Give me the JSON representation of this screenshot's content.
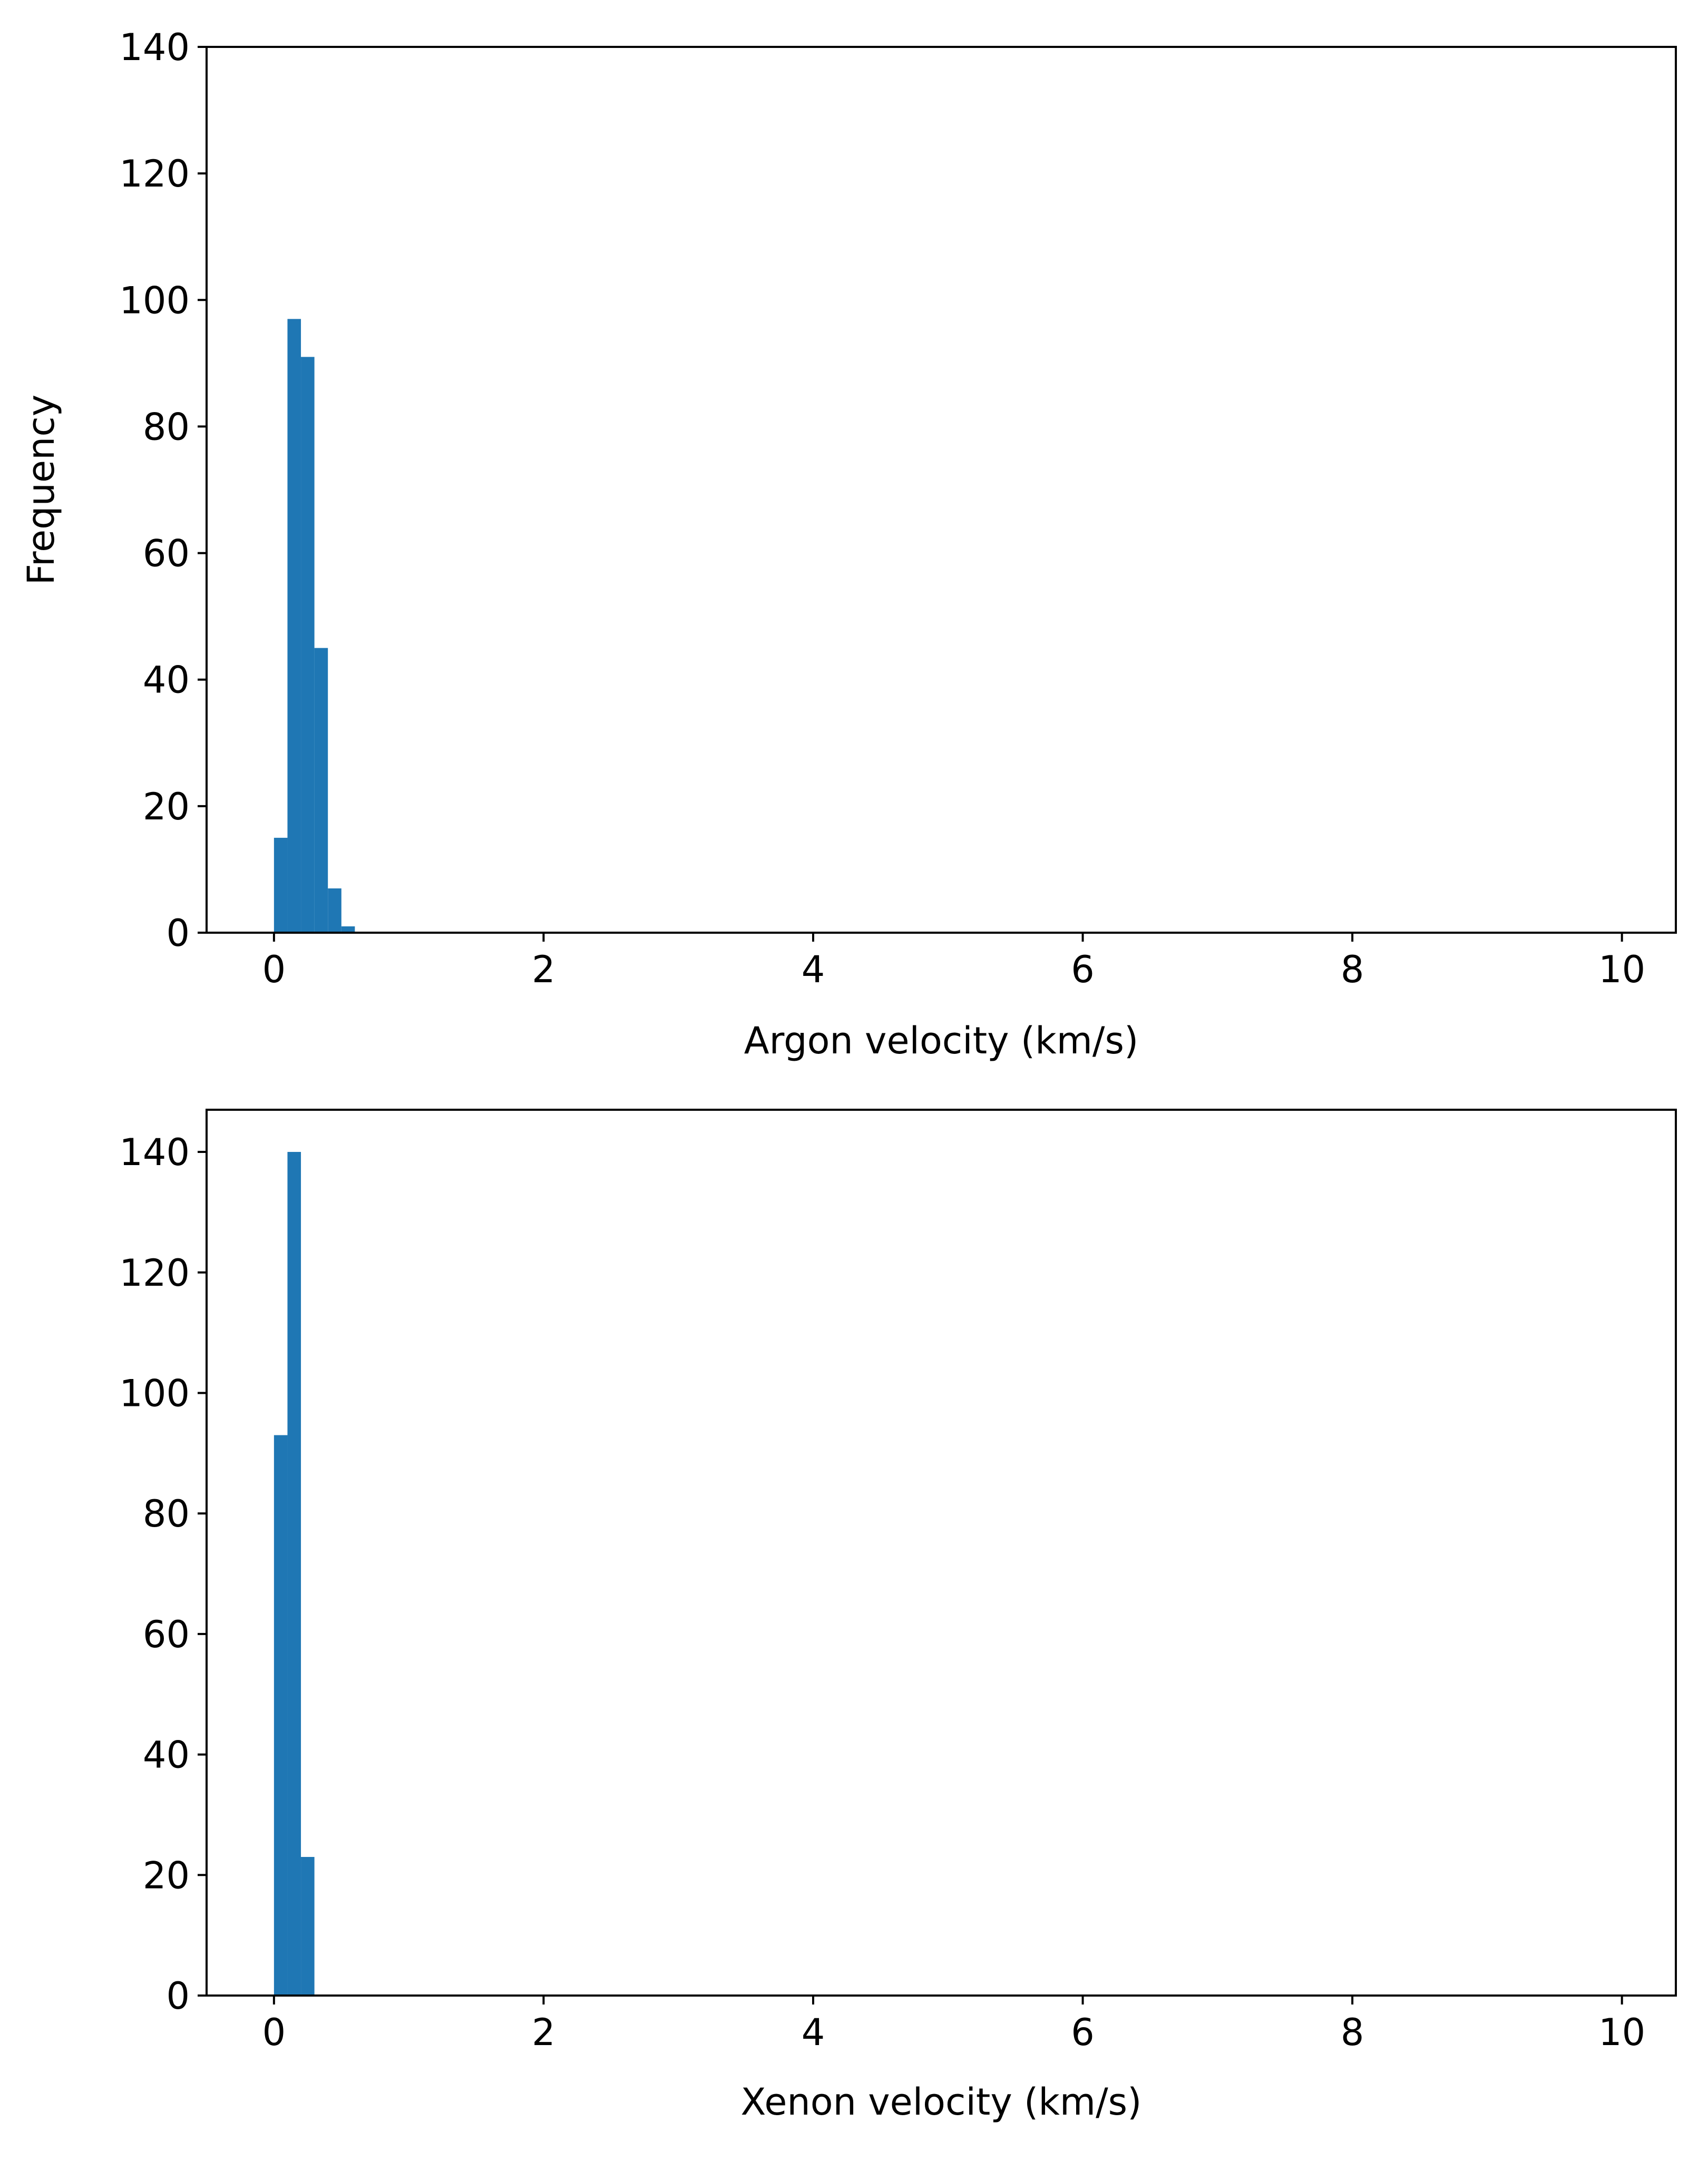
{
  "chart_data": [
    {
      "type": "bar",
      "title": "",
      "xlabel": "Argon velocity (km/s)",
      "ylabel": "Frequency",
      "xlim": [
        -0.5,
        10.4
      ],
      "ylim": [
        0,
        140
      ],
      "xticks": [
        0,
        2,
        4,
        6,
        8,
        10
      ],
      "yticks": [
        0,
        20,
        40,
        60,
        80,
        100,
        120,
        140
      ],
      "bin_width": 0.1,
      "bin_starts": [
        0.0,
        0.1,
        0.2,
        0.3,
        0.4,
        0.5
      ],
      "values": [
        15,
        97,
        91,
        45,
        7,
        1
      ],
      "bar_color": "#1f77b4",
      "grid": false,
      "legend": false
    },
    {
      "type": "bar",
      "title": "",
      "xlabel": "Xenon velocity (km/s)",
      "ylabel": "",
      "xlim": [
        -0.5,
        10.4
      ],
      "ylim": [
        0,
        147
      ],
      "xticks": [
        0,
        2,
        4,
        6,
        8,
        10
      ],
      "yticks": [
        0,
        20,
        40,
        60,
        80,
        100,
        120,
        140
      ],
      "bin_width": 0.1,
      "bin_starts": [
        0.0,
        0.1,
        0.2
      ],
      "values": [
        93,
        140,
        23
      ],
      "bar_color": "#1f77b4",
      "grid": false,
      "legend": false
    }
  ]
}
